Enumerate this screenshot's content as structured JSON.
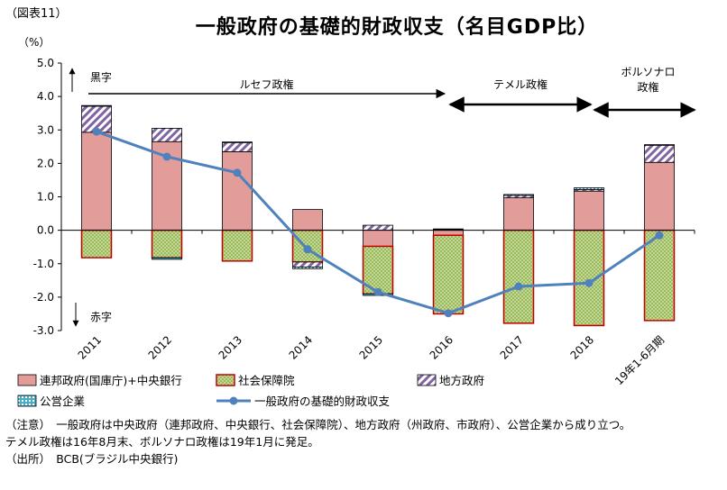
{
  "figure_label": "（図表11）",
  "title": "一般政府の基礎的財政収支（名目GDP比）",
  "unit": "（%）",
  "chart_data": {
    "type": "bar",
    "categories": [
      "2011",
      "2012",
      "2013",
      "2014",
      "2015",
      "2016",
      "2017",
      "2018",
      "19年1-6月期"
    ],
    "ylim": [
      -3.0,
      5.0
    ],
    "yticks": [
      "5.0",
      "4.0",
      "3.0",
      "2.0",
      "1.0",
      "0.0",
      "-1.0",
      "-2.0",
      "-3.0"
    ],
    "grid": false,
    "legend_position": "bottom",
    "series": [
      {
        "name": "連邦政府(国庫庁)+中央銀行",
        "color": "#e29d9b",
        "values": [
          2.93,
          2.65,
          2.35,
          0.62,
          -0.48,
          -0.15,
          0.97,
          1.17,
          2.03
        ]
      },
      {
        "name": "社会保障院",
        "color": "#9bbb59",
        "values": [
          -0.82,
          -0.82,
          -0.92,
          -0.95,
          -1.42,
          -2.35,
          -2.78,
          -2.85,
          -2.7
        ]
      },
      {
        "name": "地方政府",
        "color": "#8064a2",
        "values": [
          0.78,
          0.4,
          0.28,
          -0.15,
          0.15,
          0.02,
          0.07,
          0.05,
          0.52
        ]
      },
      {
        "name": "公営企業",
        "color": "#4bacc6",
        "values": [
          0.02,
          -0.05,
          0.01,
          -0.05,
          -0.05,
          0.02,
          0.03,
          0.05,
          0.01
        ]
      }
    ],
    "line": {
      "name": "一般政府の基礎的財政収支",
      "color": "#4f81bd",
      "values": [
        2.95,
        2.2,
        1.72,
        -0.57,
        -1.85,
        -2.48,
        -1.68,
        -1.58,
        -0.15
      ]
    },
    "annotations": {
      "surplus": "黒字",
      "deficit": "赤字",
      "eras": [
        {
          "label": "ルセフ政権",
          "from": "2011",
          "to": "2016"
        },
        {
          "label": "テメル政権",
          "from": "2016",
          "to": "2018"
        },
        {
          "label": "ボルソナロ政権",
          "from": "2018",
          "to": "19年1-6月期"
        }
      ]
    }
  },
  "notes": [
    "（注意）　一般政府は中央政府（連邦政府、中央銀行、社会保障院）、地方政府（州政府、市政府）、公営企業から成り立つ。",
    "テメル政権は16年8月末、ボルソナロ政権は19年1月に発足。",
    "（出所）　BCB(ブラジル中央銀行)"
  ]
}
